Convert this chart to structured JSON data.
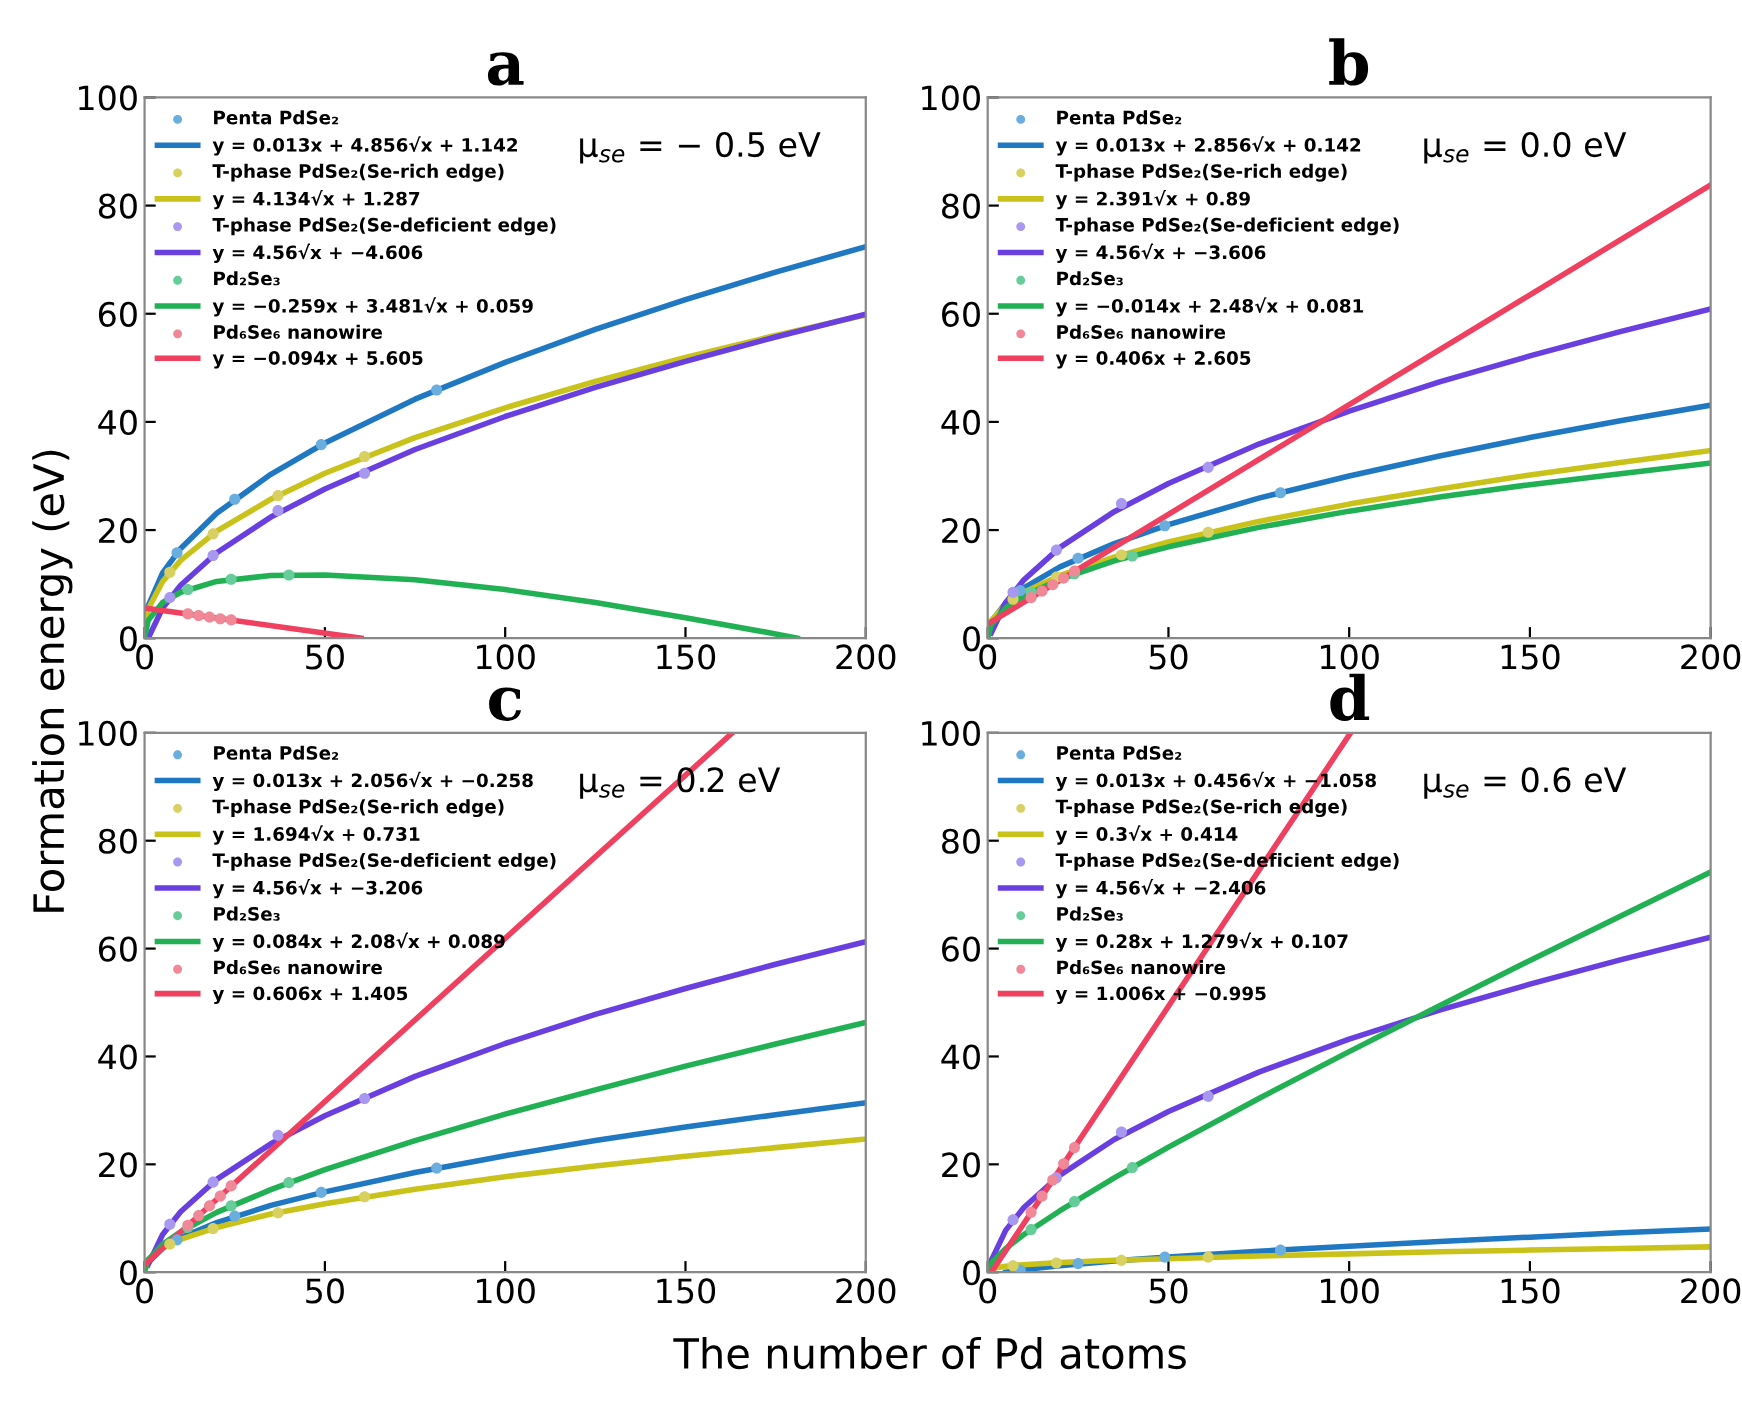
{
  "chart_data": [
    {
      "type": "scatter",
      "title": "a",
      "ylabel": "Formation energy (eV)",
      "annotations": [
        "μ$_{se}$ = − 0.5 eV"
      ],
      "xlim": [
        0,
        200
      ],
      "ylim": [
        0,
        100
      ],
      "xticks": [
        0,
        50,
        100,
        150,
        200
      ],
      "yticks": [
        0,
        20,
        40,
        60,
        80,
        100
      ],
      "grid": false,
      "legend": "top left",
      "marker": "circle",
      "line_style": "solid",
      "series": [
        {
          "name": "Penta PdSe₂",
          "color": "#6aaee0",
          "x": [
            9,
            25,
            49,
            81
          ],
          "values": [
            15.8,
            25.7,
            35.8,
            45.9
          ]
        },
        {
          "name": "y = 0.013x + 4.856√x + 1.142",
          "type": "line",
          "marker": "none",
          "color": "#1f78c1",
          "x": [
            0,
            1,
            5,
            10,
            20,
            35,
            50,
            75,
            100,
            125,
            150,
            175,
            200
          ],
          "values": [
            1.1,
            6.0,
            12.1,
            16.6,
            23.1,
            30.3,
            36.1,
            44.2,
            51.0,
            57.1,
            62.6,
            67.7,
            72.4
          ]
        },
        {
          "name": "T-phase PdSe₂(Se-rich edge)",
          "color": "#d8d060",
          "x": [
            7,
            19,
            37,
            61
          ],
          "values": [
            12.2,
            19.3,
            26.4,
            33.6
          ]
        },
        {
          "name": "y = 4.134√x + 1.287",
          "type": "line",
          "marker": "none",
          "color": "#c8c21a",
          "x": [
            0,
            1,
            5,
            10,
            20,
            35,
            50,
            75,
            100,
            125,
            150,
            175,
            200
          ],
          "values": [
            1.3,
            5.4,
            10.5,
            14.4,
            19.8,
            25.7,
            30.5,
            37.1,
            42.6,
            47.5,
            51.9,
            56.0,
            59.8
          ]
        },
        {
          "name": "T-phase PdSe₂(Se-deficient edge)",
          "color": "#a898ef",
          "x": [
            7,
            19,
            37,
            61
          ],
          "values": [
            7.5,
            15.3,
            23.6,
            30.5
          ]
        },
        {
          "name": "y = 4.56√x + −4.606",
          "type": "line",
          "marker": "none",
          "color": "#6a3fe0",
          "x": [
            1,
            5,
            10,
            20,
            35,
            50,
            75,
            100,
            125,
            150,
            175,
            200
          ],
          "values": [
            0,
            5.6,
            9.8,
            15.8,
            22.4,
            27.6,
            34.9,
            41.0,
            46.4,
            51.2,
            55.7,
            59.9
          ]
        },
        {
          "name": "Pd₂Se₃",
          "color": "#66cc99",
          "x": [
            12,
            24,
            40
          ],
          "values": [
            9.0,
            10.9,
            11.7
          ]
        },
        {
          "name": "y = −0.259x + 3.481√x + 0.059",
          "type": "line",
          "marker": "none",
          "color": "#22b055",
          "x": [
            0,
            1,
            5,
            10,
            20,
            35,
            50,
            75,
            100,
            125,
            150,
            175,
            181
          ],
          "values": [
            0.1,
            3.3,
            6.6,
            8.5,
            10.5,
            11.6,
            11.7,
            10.8,
            9.0,
            6.6,
            3.8,
            0.8,
            0
          ]
        },
        {
          "name": "Pd₆Se₆ nanowire",
          "color": "#f08898",
          "x": [
            12,
            15,
            18,
            21,
            24
          ],
          "values": [
            4.5,
            4.2,
            3.9,
            3.6,
            3.4
          ]
        },
        {
          "name": "y = −0.094x + 5.605",
          "type": "line",
          "marker": "none",
          "color": "#f04060",
          "x": [
            0,
            60
          ],
          "values": [
            5.6,
            0
          ]
        }
      ]
    },
    {
      "type": "scatter",
      "title": "b",
      "annotations": [
        "μ$_{se}$ = 0.0 eV"
      ],
      "xlim": [
        0,
        200
      ],
      "ylim": [
        0,
        100
      ],
      "xticks": [
        0,
        50,
        100,
        150,
        200
      ],
      "yticks": [
        0,
        20,
        40,
        60,
        80,
        100
      ],
      "grid": false,
      "legend": "top left",
      "marker": "circle",
      "line_style": "solid",
      "series": [
        {
          "name": "Penta PdSe₂",
          "color": "#6aaee0",
          "x": [
            9,
            25,
            49,
            81
          ],
          "values": [
            8.8,
            14.8,
            20.8,
            26.9
          ]
        },
        {
          "name": "y = 0.013x + 2.856√x + 0.142",
          "type": "line",
          "marker": "none",
          "color": "#1f78c1",
          "x": [
            0,
            1,
            5,
            10,
            20,
            35,
            50,
            75,
            100,
            125,
            150,
            175,
            200
          ],
          "values": [
            0.1,
            3.0,
            6.6,
            9.3,
            13.2,
            17.5,
            21.0,
            25.9,
            30.0,
            33.7,
            37.1,
            40.2,
            43.1
          ]
        },
        {
          "name": "T-phase PdSe₂(Se-rich edge)",
          "color": "#d8d060",
          "x": [
            7,
            19,
            37,
            61
          ],
          "values": [
            7.2,
            11.3,
            15.4,
            19.6
          ]
        },
        {
          "name": "y = 2.391√x + 0.89",
          "type": "line",
          "marker": "none",
          "color": "#c8c21a",
          "x": [
            0,
            1,
            5,
            10,
            20,
            35,
            50,
            75,
            100,
            125,
            150,
            175,
            200
          ],
          "values": [
            0.9,
            3.3,
            6.2,
            8.5,
            11.6,
            15.0,
            17.8,
            21.6,
            24.8,
            27.6,
            30.2,
            32.5,
            34.7
          ]
        },
        {
          "name": "T-phase PdSe₂(Se-deficient edge)",
          "color": "#a898ef",
          "x": [
            7,
            19,
            37,
            61
          ],
          "values": [
            8.5,
            16.3,
            24.9,
            31.6
          ]
        },
        {
          "name": "y = 4.56√x + −3.606",
          "type": "line",
          "marker": "none",
          "color": "#6a3fe0",
          "x": [
            1,
            5,
            10,
            20,
            35,
            50,
            75,
            100,
            125,
            150,
            175,
            200
          ],
          "values": [
            1.0,
            6.6,
            10.8,
            16.8,
            23.4,
            28.6,
            35.9,
            42.0,
            47.4,
            52.2,
            56.7,
            60.9
          ]
        },
        {
          "name": "Pd₂Se₃",
          "color": "#66cc99",
          "x": [
            12,
            24,
            40
          ],
          "values": [
            8.5,
            11.9,
            15.2
          ]
        },
        {
          "name": "y = −0.014x + 2.48√x + 0.081",
          "type": "line",
          "marker": "none",
          "color": "#22b055",
          "x": [
            0,
            1,
            5,
            10,
            20,
            35,
            50,
            75,
            100,
            125,
            150,
            175,
            200
          ],
          "values": [
            0.1,
            2.5,
            5.6,
            7.8,
            10.9,
            14.3,
            16.9,
            20.5,
            23.5,
            26.1,
            28.4,
            30.4,
            32.4
          ]
        },
        {
          "name": "Pd₆Se₆ nanowire",
          "color": "#f08898",
          "x": [
            12,
            15,
            18,
            21,
            24
          ],
          "values": [
            7.5,
            8.7,
            9.9,
            11.1,
            12.4
          ]
        },
        {
          "name": "y = 0.406x + 2.605",
          "type": "line",
          "marker": "none",
          "color": "#f04060",
          "x": [
            0,
            200
          ],
          "values": [
            2.6,
            83.8
          ]
        }
      ]
    },
    {
      "type": "scatter",
      "title": "c",
      "xlabel": "The number of Pd atoms",
      "annotations": [
        "μ$_{se}$ = 0.2 eV"
      ],
      "xlim": [
        0,
        200
      ],
      "ylim": [
        0,
        100
      ],
      "xticks": [
        0,
        50,
        100,
        150,
        200
      ],
      "yticks": [
        0,
        20,
        40,
        60,
        80,
        100
      ],
      "grid": false,
      "legend": "top left",
      "marker": "circle",
      "line_style": "solid",
      "series": [
        {
          "name": "Penta PdSe₂",
          "color": "#6aaee0",
          "x": [
            9,
            25,
            49,
            81
          ],
          "values": [
            6.0,
            10.4,
            14.8,
            19.3
          ]
        },
        {
          "name": "y = 0.013x + 2.056√x + −0.258",
          "type": "line",
          "marker": "none",
          "color": "#1f78c1",
          "x": [
            1,
            5,
            10,
            20,
            35,
            50,
            75,
            100,
            125,
            150,
            175,
            200
          ],
          "values": [
            1.8,
            4.4,
            6.4,
            9.2,
            12.4,
            14.9,
            18.5,
            21.6,
            24.4,
            26.9,
            29.2,
            31.4
          ]
        },
        {
          "name": "T-phase PdSe₂(Se-rich edge)",
          "color": "#d8d060",
          "x": [
            7,
            19,
            37,
            61
          ],
          "values": [
            5.2,
            8.1,
            11.0,
            14.0
          ]
        },
        {
          "name": "y = 1.694√x + 0.731",
          "type": "line",
          "marker": "none",
          "color": "#c8c21a",
          "x": [
            0,
            1,
            5,
            10,
            20,
            35,
            50,
            75,
            100,
            125,
            150,
            175,
            200
          ],
          "values": [
            0.7,
            2.4,
            4.5,
            6.1,
            8.3,
            10.8,
            12.7,
            15.4,
            17.7,
            19.7,
            21.5,
            23.1,
            24.7
          ]
        },
        {
          "name": "T-phase PdSe₂(Se-deficient edge)",
          "color": "#a898ef",
          "x": [
            7,
            19,
            37,
            61
          ],
          "values": [
            8.9,
            16.7,
            25.4,
            32.2
          ]
        },
        {
          "name": "y = 4.56√x + −3.206",
          "type": "line",
          "marker": "none",
          "color": "#6a3fe0",
          "x": [
            1,
            5,
            10,
            20,
            35,
            50,
            75,
            100,
            125,
            150,
            175,
            200
          ],
          "values": [
            1.4,
            7.0,
            11.2,
            17.2,
            23.8,
            29.0,
            36.3,
            42.4,
            47.8,
            52.6,
            57.1,
            61.3
          ]
        },
        {
          "name": "Pd₂Se₃",
          "color": "#66cc99",
          "x": [
            12,
            24,
            40
          ],
          "values": [
            8.3,
            12.3,
            16.6
          ]
        },
        {
          "name": "y = 0.084x + 2.08√x + 0.089",
          "type": "line",
          "marker": "none",
          "color": "#22b055",
          "x": [
            0,
            1,
            5,
            10,
            20,
            35,
            50,
            75,
            100,
            125,
            150,
            175,
            200
          ],
          "values": [
            0.1,
            2.3,
            5.2,
            7.5,
            11.1,
            15.3,
            19.0,
            24.4,
            29.3,
            33.8,
            38.2,
            42.3,
            46.3
          ]
        },
        {
          "name": "Pd₆Se₆ nanowire",
          "color": "#f08898",
          "x": [
            12,
            15,
            18,
            21,
            24
          ],
          "values": [
            8.7,
            10.5,
            12.3,
            14.1,
            16.0
          ]
        },
        {
          "name": "y = 0.606x + 1.405",
          "type": "line",
          "marker": "none",
          "color": "#f04060",
          "x": [
            0,
            163
          ],
          "values": [
            1.4,
            100
          ]
        }
      ]
    },
    {
      "type": "scatter",
      "title": "d",
      "annotations": [
        "μ$_{se}$ = 0.6 eV"
      ],
      "xlim": [
        0,
        200
      ],
      "ylim": [
        0,
        100
      ],
      "xticks": [
        0,
        50,
        100,
        150,
        200
      ],
      "yticks": [
        0,
        20,
        40,
        60,
        80,
        100
      ],
      "grid": false,
      "legend": "top left",
      "marker": "circle",
      "line_style": "solid",
      "series": [
        {
          "name": "Penta PdSe₂",
          "color": "#6aaee0",
          "x": [
            9,
            25,
            49,
            81
          ],
          "values": [
            0.4,
            1.6,
            2.8,
            4.1
          ]
        },
        {
          "name": "y = 0.013x + 0.456√x + −1.058",
          "type": "line",
          "marker": "none",
          "color": "#1f78c1",
          "x": [
            5,
            10,
            20,
            35,
            50,
            75,
            100,
            125,
            150,
            175,
            200
          ],
          "values": [
            0,
            0.5,
            1.2,
            2.1,
            2.8,
            3.9,
            4.8,
            5.7,
            6.5,
            7.3,
            8.0
          ]
        },
        {
          "name": "T-phase PdSe₂(Se-rich edge)",
          "color": "#d8d060",
          "x": [
            7,
            19,
            37,
            61
          ],
          "values": [
            1.2,
            1.7,
            2.2,
            2.8
          ]
        },
        {
          "name": "y = 0.3√x + 0.414",
          "type": "line",
          "marker": "none",
          "color": "#c8c21a",
          "x": [
            0,
            1,
            5,
            10,
            20,
            35,
            50,
            75,
            100,
            125,
            150,
            175,
            200
          ],
          "values": [
            0.4,
            0.7,
            1.1,
            1.4,
            1.8,
            2.2,
            2.5,
            3.0,
            3.4,
            3.8,
            4.1,
            4.4,
            4.7
          ]
        },
        {
          "name": "T-phase PdSe₂(Se-deficient edge)",
          "color": "#a898ef",
          "x": [
            7,
            19,
            37,
            61
          ],
          "values": [
            9.7,
            17.5,
            26.0,
            32.6
          ]
        },
        {
          "name": "y = 4.56√x + −2.406",
          "type": "line",
          "marker": "none",
          "color": "#6a3fe0",
          "x": [
            1,
            5,
            10,
            20,
            35,
            50,
            75,
            100,
            125,
            150,
            175,
            200
          ],
          "values": [
            2.2,
            7.8,
            12.0,
            18.0,
            24.6,
            29.8,
            37.1,
            43.2,
            48.6,
            53.4,
            57.9,
            62.1
          ]
        },
        {
          "name": "Pd₂Se₃",
          "color": "#66cc99",
          "x": [
            12,
            24,
            40
          ],
          "values": [
            7.9,
            13.1,
            19.4
          ]
        },
        {
          "name": "y = 0.28x + 1.279√x + 0.107",
          "type": "line",
          "marker": "none",
          "color": "#22b055",
          "x": [
            0,
            1,
            5,
            10,
            20,
            35,
            50,
            75,
            100,
            125,
            150,
            175,
            200
          ],
          "values": [
            0.1,
            1.7,
            4.4,
            7.0,
            11.4,
            17.5,
            23.2,
            32.2,
            40.9,
            49.4,
            57.8,
            66.0,
            74.2
          ]
        },
        {
          "name": "Pd₆Se₆ nanowire",
          "color": "#f08898",
          "x": [
            12,
            15,
            18,
            21,
            24
          ],
          "values": [
            11.1,
            14.1,
            17.1,
            20.1,
            23.1
          ]
        },
        {
          "name": "y = 1.006x + −0.995",
          "type": "line",
          "marker": "none",
          "color": "#f04060",
          "x": [
            1,
            100
          ],
          "values": [
            0,
            99.6
          ]
        }
      ]
    }
  ]
}
